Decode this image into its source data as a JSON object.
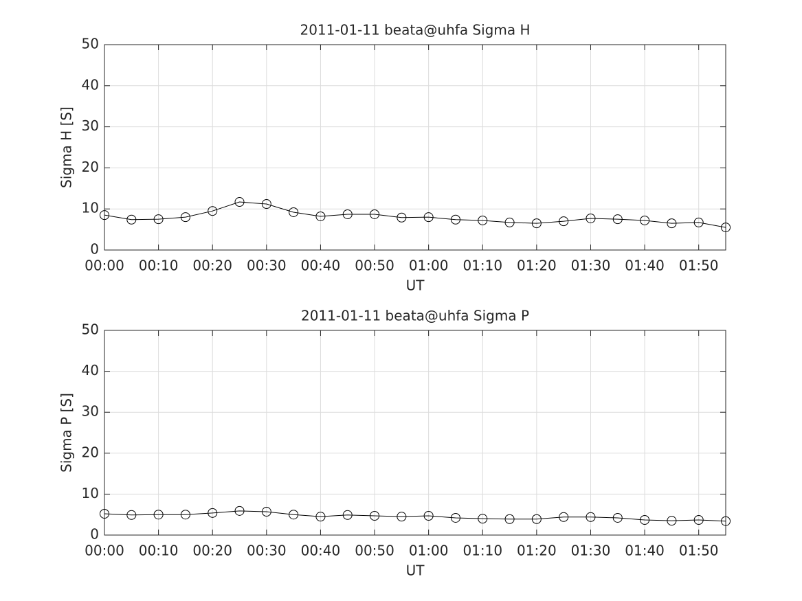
{
  "chart_data": [
    {
      "type": "line",
      "title": "2011-01-11  beata@uhfa Sigma H",
      "xlabel": "UT",
      "ylabel": "Sigma H [S]",
      "x": [
        0,
        5,
        10,
        15,
        20,
        25,
        30,
        35,
        40,
        45,
        50,
        55,
        60,
        65,
        70,
        75,
        80,
        85,
        90,
        95,
        100,
        105,
        110,
        115
      ],
      "values": [
        8.5,
        7.4,
        7.5,
        8.0,
        9.5,
        11.7,
        11.2,
        9.2,
        8.2,
        8.7,
        8.7,
        7.9,
        8.0,
        7.4,
        7.2,
        6.7,
        6.5,
        7.0,
        7.7,
        7.5,
        7.2,
        6.5,
        6.7,
        5.5
      ],
      "color": "#000000",
      "marker": "circle",
      "xlim": [
        0,
        115
      ],
      "xticks": [
        {
          "value": 0,
          "label": "00:00"
        },
        {
          "value": 10,
          "label": "00:10"
        },
        {
          "value": 20,
          "label": "00:20"
        },
        {
          "value": 30,
          "label": "00:30"
        },
        {
          "value": 40,
          "label": "00:40"
        },
        {
          "value": 50,
          "label": "00:50"
        },
        {
          "value": 60,
          "label": "01:00"
        },
        {
          "value": 70,
          "label": "01:10"
        },
        {
          "value": 80,
          "label": "01:20"
        },
        {
          "value": 90,
          "label": "01:30"
        },
        {
          "value": 100,
          "label": "01:40"
        },
        {
          "value": 110,
          "label": "01:50"
        }
      ],
      "ylim": [
        0,
        50
      ],
      "yticks": [
        0,
        10,
        20,
        30,
        40,
        50
      ],
      "grid": true
    },
    {
      "type": "line",
      "title": "2011-01-11  beata@uhfa Sigma P",
      "xlabel": "UT",
      "ylabel": "Sigma P [S]",
      "x": [
        0,
        5,
        10,
        15,
        20,
        25,
        30,
        35,
        40,
        45,
        50,
        55,
        60,
        65,
        70,
        75,
        80,
        85,
        90,
        95,
        100,
        105,
        110,
        115
      ],
      "values": [
        5.2,
        4.9,
        5.0,
        5.0,
        5.4,
        5.9,
        5.7,
        5.0,
        4.5,
        4.9,
        4.7,
        4.5,
        4.7,
        4.2,
        4.0,
        3.9,
        3.9,
        4.4,
        4.4,
        4.2,
        3.7,
        3.5,
        3.7,
        3.4
      ],
      "color": "#000000",
      "marker": "circle",
      "xlim": [
        0,
        115
      ],
      "xticks": [
        {
          "value": 0,
          "label": "00:00"
        },
        {
          "value": 10,
          "label": "00:10"
        },
        {
          "value": 20,
          "label": "00:20"
        },
        {
          "value": 30,
          "label": "00:30"
        },
        {
          "value": 40,
          "label": "00:40"
        },
        {
          "value": 50,
          "label": "00:50"
        },
        {
          "value": 60,
          "label": "01:00"
        },
        {
          "value": 70,
          "label": "01:10"
        },
        {
          "value": 80,
          "label": "01:20"
        },
        {
          "value": 90,
          "label": "01:30"
        },
        {
          "value": 100,
          "label": "01:40"
        },
        {
          "value": 110,
          "label": "01:50"
        }
      ],
      "ylim": [
        0,
        50
      ],
      "yticks": [
        0,
        10,
        20,
        30,
        40,
        50
      ],
      "grid": true
    }
  ]
}
